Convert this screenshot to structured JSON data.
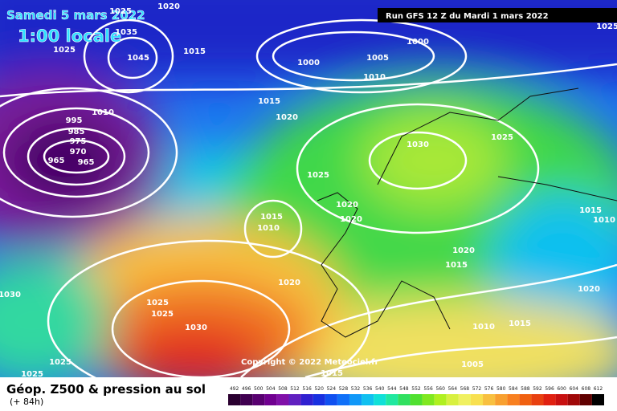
{
  "header": {
    "date": "Samedi 5 mars 2022",
    "time": "1:00 locale",
    "run": "Run GFS 12 Z du Mardi 1 mars 2022",
    "copyright": "Copyright © 2022 Meteociel.fr"
  },
  "footer": {
    "title": "Géop. Z500 & pression au sol",
    "lead": "(+ 84h)"
  },
  "scale": {
    "labels": [
      492,
      496,
      500,
      504,
      508,
      512,
      516,
      520,
      524,
      528,
      532,
      536,
      540,
      544,
      548,
      552,
      556,
      560,
      564,
      568,
      572,
      576,
      580,
      584,
      588,
      592,
      596,
      600,
      604,
      608,
      612
    ],
    "colors": [
      "#2a0030",
      "#400050",
      "#580070",
      "#700090",
      "#8010a8",
      "#6020c0",
      "#3020d0",
      "#1830e0",
      "#1050f0",
      "#1070f8",
      "#1098f8",
      "#10c0f0",
      "#10e0d8",
      "#20e8a0",
      "#30e060",
      "#50e030",
      "#80e820",
      "#b0f020",
      "#d8f040",
      "#f0f060",
      "#f8e050",
      "#f8c040",
      "#f8a030",
      "#f88020",
      "#f06010",
      "#e84010",
      "#e02010",
      "#c81010",
      "#a00808",
      "#600000",
      "#000000"
    ]
  },
  "isobars": [
    1020,
    1025,
    1035,
    1045,
    1015,
    1025,
    1000,
    1000,
    1005,
    1010,
    1025,
    1015,
    1020,
    1010,
    995,
    985,
    975,
    970,
    965,
    965,
    1030,
    1025,
    1025,
    1020,
    1020,
    1015,
    1010,
    1020,
    1015,
    1015,
    1010,
    1020,
    1020,
    1030,
    1025,
    1025,
    1030,
    1010,
    1015,
    1005,
    1025,
    1025,
    1015
  ]
}
